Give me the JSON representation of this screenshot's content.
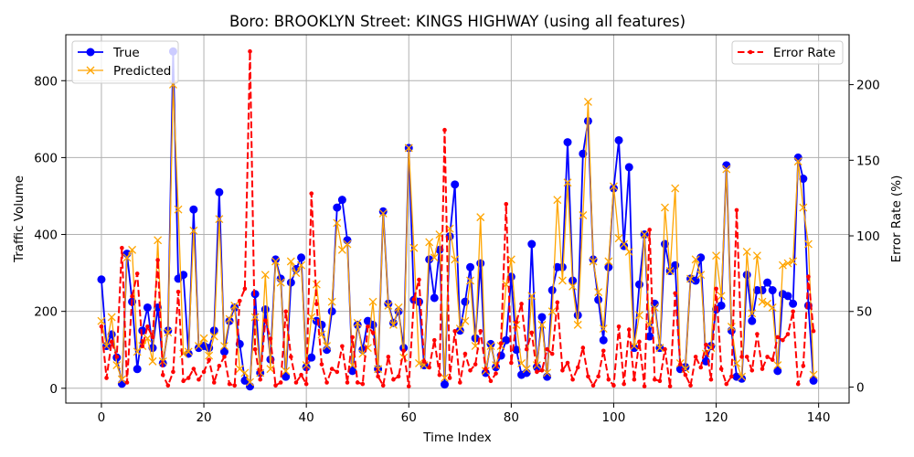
{
  "chart_data": {
    "type": "line",
    "title": "Boro: BROOKLYN Street: KINGS HIGHWAY (using all features)",
    "xlabel": "Time Index",
    "ylabel": "Traffic Volume",
    "y2label": "Error Rate (%)",
    "xlim": [
      -6.95,
      145.95
    ],
    "ylim": [
      -38.5,
      919.5
    ],
    "y2lim": [
      -10.6,
      233
    ],
    "xticks": [
      0,
      20,
      40,
      60,
      80,
      100,
      120,
      140
    ],
    "yticks": [
      0,
      200,
      400,
      600,
      800
    ],
    "y2ticks": [
      0,
      50,
      100,
      150,
      200
    ],
    "grid": true,
    "legend": "upper left",
    "legend2": "upper right",
    "x": [
      0,
      1,
      2,
      3,
      4,
      5,
      6,
      7,
      8,
      9,
      10,
      11,
      12,
      13,
      14,
      15,
      16,
      17,
      18,
      19,
      20,
      21,
      22,
      23,
      24,
      25,
      26,
      27,
      28,
      29,
      30,
      31,
      32,
      33,
      34,
      35,
      36,
      37,
      38,
      39,
      40,
      41,
      42,
      43,
      44,
      45,
      46,
      47,
      48,
      49,
      50,
      51,
      52,
      53,
      54,
      55,
      56,
      57,
      58,
      59,
      60,
      61,
      62,
      63,
      64,
      65,
      66,
      67,
      68,
      69,
      70,
      71,
      72,
      73,
      74,
      75,
      76,
      77,
      78,
      79,
      80,
      81,
      82,
      83,
      84,
      85,
      86,
      87,
      88,
      89,
      90,
      91,
      92,
      93,
      94,
      95,
      96,
      97,
      98,
      99,
      100,
      101,
      102,
      103,
      104,
      105,
      106,
      107,
      108,
      109,
      110,
      111,
      112,
      113,
      114,
      115,
      116,
      117,
      118,
      119,
      120,
      121,
      122,
      123,
      124,
      125,
      126,
      127,
      128,
      129,
      130,
      131,
      132,
      133,
      134,
      135,
      136,
      137,
      138,
      139
    ],
    "series": [
      {
        "name": "True",
        "color": "#0000ff",
        "values": [
          283,
          110,
          140,
          80,
          12,
          350,
          225,
          50,
          150,
          210,
          105,
          210,
          65,
          150,
          876,
          285,
          295,
          90,
          465,
          105,
          110,
          105,
          150,
          510,
          95,
          175,
          210,
          115,
          20,
          5,
          245,
          40,
          205,
          75,
          335,
          285,
          30,
          275,
          310,
          340,
          55,
          80,
          175,
          165,
          100,
          200,
          470,
          490,
          385,
          45,
          165,
          100,
          175,
          165,
          50,
          460,
          220,
          170,
          200,
          105,
          625,
          230,
          225,
          60,
          335,
          235,
          360,
          10,
          395,
          530,
          150,
          225,
          315,
          130,
          325,
          40,
          115,
          55,
          85,
          125,
          290,
          100,
          35,
          40,
          375,
          55,
          185,
          30,
          255,
          315,
          315,
          640,
          280,
          190,
          610,
          695,
          335,
          230,
          125,
          315,
          520,
          645,
          370,
          575,
          105,
          270,
          400,
          135,
          220,
          105,
          375,
          305,
          320,
          50,
          55,
          285,
          280,
          340,
          70,
          110,
          205,
          215,
          580,
          150,
          30,
          25,
          295,
          175,
          255,
          255,
          275,
          255,
          45,
          245,
          240,
          220,
          600,
          545,
          215,
          20
        ]
      },
      {
        "name": "Predicted",
        "color": "#ffa500",
        "values": [
          175,
          110,
          185,
          60,
          23,
          340,
          360,
          95,
          110,
          130,
          70,
          385,
          70,
          145,
          790,
          465,
          90,
          95,
          410,
          110,
          130,
          85,
          135,
          440,
          110,
          180,
          215,
          50,
          40,
          16,
          185,
          40,
          295,
          50,
          330,
          275,
          45,
          330,
          300,
          320,
          60,
          185,
          270,
          140,
          110,
          225,
          430,
          360,
          375,
          60,
          170,
          90,
          105,
          225,
          50,
          455,
          215,
          165,
          210,
          80,
          625,
          365,
          65,
          60,
          380,
          340,
          400,
          27,
          415,
          335,
          155,
          175,
          280,
          110,
          445,
          45,
          110,
          60,
          110,
          270,
          335,
          165,
          65,
          50,
          240,
          60,
          165,
          40,
          200,
          490,
          280,
          535,
          265,
          165,
          450,
          745,
          330,
          250,
          155,
          330,
          525,
          390,
          375,
          355,
          110,
          190,
          400,
          165,
          210,
          105,
          470,
          305,
          520,
          65,
          50,
          285,
          335,
          295,
          90,
          105,
          345,
          240,
          570,
          160,
          65,
          30,
          355,
          195,
          345,
          225,
          220,
          210,
          60,
          320,
          325,
          330,
          590,
          470,
          375,
          35
        ]
      }
    ],
    "series_right": [
      {
        "name": "Error Rate",
        "color": "#ff0000",
        "values": [
          40,
          6,
          30,
          20,
          92,
          3,
          60,
          75,
          27,
          40,
          33,
          84,
          8,
          1,
          10,
          63,
          4,
          6,
          12,
          5,
          10,
          18,
          3,
          14,
          20,
          2,
          1,
          57,
          65,
          222,
          25,
          5,
          44,
          32,
          1,
          3,
          50,
          20,
          3,
          8,
          2,
          128,
          55,
          15,
          3,
          12,
          10,
          27,
          3,
          33,
          3,
          2,
          40,
          36,
          7,
          1,
          20,
          5,
          7,
          24,
          0.5,
          58,
          71,
          17,
          13,
          31,
          8,
          170,
          6,
          37,
          3,
          22,
          11,
          15,
          37,
          12,
          4,
          9,
          29,
          121,
          16,
          43,
          55,
          25,
          36,
          10,
          11,
          25,
          22,
          56,
          11,
          16,
          5,
          13,
          26,
          7,
          1,
          7,
          24,
          5,
          1,
          40,
          2,
          38,
          5,
          30,
          0.5,
          104,
          5,
          4,
          25,
          0.5,
          62,
          15,
          8,
          1,
          20,
          13,
          28,
          5,
          65,
          12,
          2,
          7,
          117,
          20,
          20,
          11,
          35,
          12,
          20,
          18,
          33,
          31,
          35,
          50,
          2,
          14,
          73,
          37
        ]
      }
    ]
  }
}
